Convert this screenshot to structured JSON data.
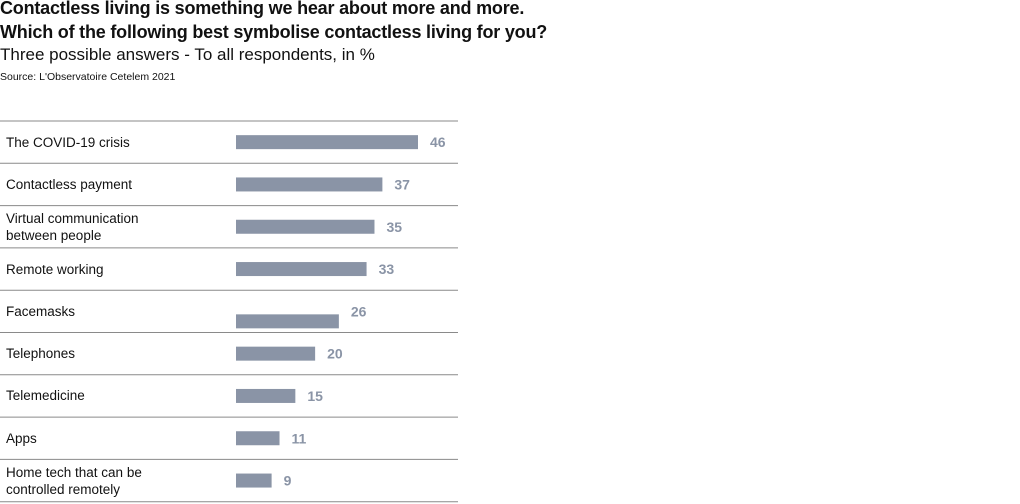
{
  "chart_data": {
    "type": "bar",
    "orientation": "horizontal",
    "title_lines": [
      "Contactless living is something we hear about more and more.",
      "Which of the following best symbolise contactless living for you?"
    ],
    "subtitle": "Three possible answers - To all respondents, in %",
    "source": "Source: L'Observatoire Cetelem 2021",
    "categories": [
      [
        "The COVID-19 crisis"
      ],
      [
        "Contactless payment"
      ],
      [
        "Virtual communication",
        "between people"
      ],
      [
        "Remote working"
      ],
      [
        "Facemasks"
      ],
      [
        "Telephones"
      ],
      [
        "Telemedicine"
      ],
      [
        "Apps"
      ],
      [
        "Home tech that can be",
        "controlled remotely"
      ]
    ],
    "values": [
      46,
      37,
      35,
      33,
      26,
      20,
      15,
      11,
      9
    ],
    "xlim": [
      0,
      46
    ],
    "bar_color": "#8a94a6",
    "value_color": "#8a94a6",
    "divider_color": "#8a8a8a"
  }
}
